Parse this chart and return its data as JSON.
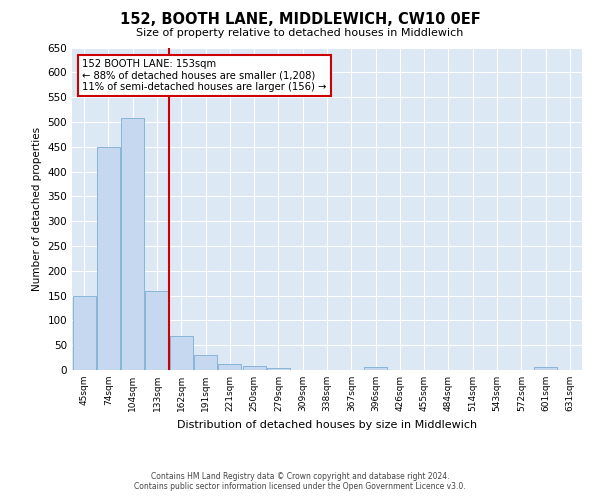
{
  "title": "152, BOOTH LANE, MIDDLEWICH, CW10 0EF",
  "subtitle": "Size of property relative to detached houses in Middlewich",
  "xlabel": "Distribution of detached houses by size in Middlewich",
  "ylabel": "Number of detached properties",
  "bar_color": "#c5d8f0",
  "bar_edge_color": "#7aadd4",
  "background_color": "#dde8f5",
  "fig_background": "#ffffff",
  "grid_color": "#ffffff",
  "categories": [
    "45sqm",
    "74sqm",
    "104sqm",
    "133sqm",
    "162sqm",
    "191sqm",
    "221sqm",
    "250sqm",
    "279sqm",
    "309sqm",
    "338sqm",
    "367sqm",
    "396sqm",
    "426sqm",
    "455sqm",
    "484sqm",
    "514sqm",
    "543sqm",
    "572sqm",
    "601sqm",
    "631sqm"
  ],
  "values": [
    150,
    450,
    507,
    160,
    68,
    30,
    13,
    9,
    5,
    0,
    0,
    0,
    6,
    0,
    0,
    0,
    0,
    0,
    0,
    6,
    0
  ],
  "ylim": [
    0,
    650
  ],
  "yticks": [
    0,
    50,
    100,
    150,
    200,
    250,
    300,
    350,
    400,
    450,
    500,
    550,
    600,
    650
  ],
  "property_line_index": 4,
  "property_line_label": "152 BOOTH LANE: 153sqm",
  "annotation_line1": "← 88% of detached houses are smaller (1,208)",
  "annotation_line2": "11% of semi-detached houses are larger (156) →",
  "footnote1": "Contains HM Land Registry data © Crown copyright and database right 2024.",
  "footnote2": "Contains public sector information licensed under the Open Government Licence v3.0.",
  "red_line_color": "#cc0000",
  "annotation_box_color": "#cc0000"
}
